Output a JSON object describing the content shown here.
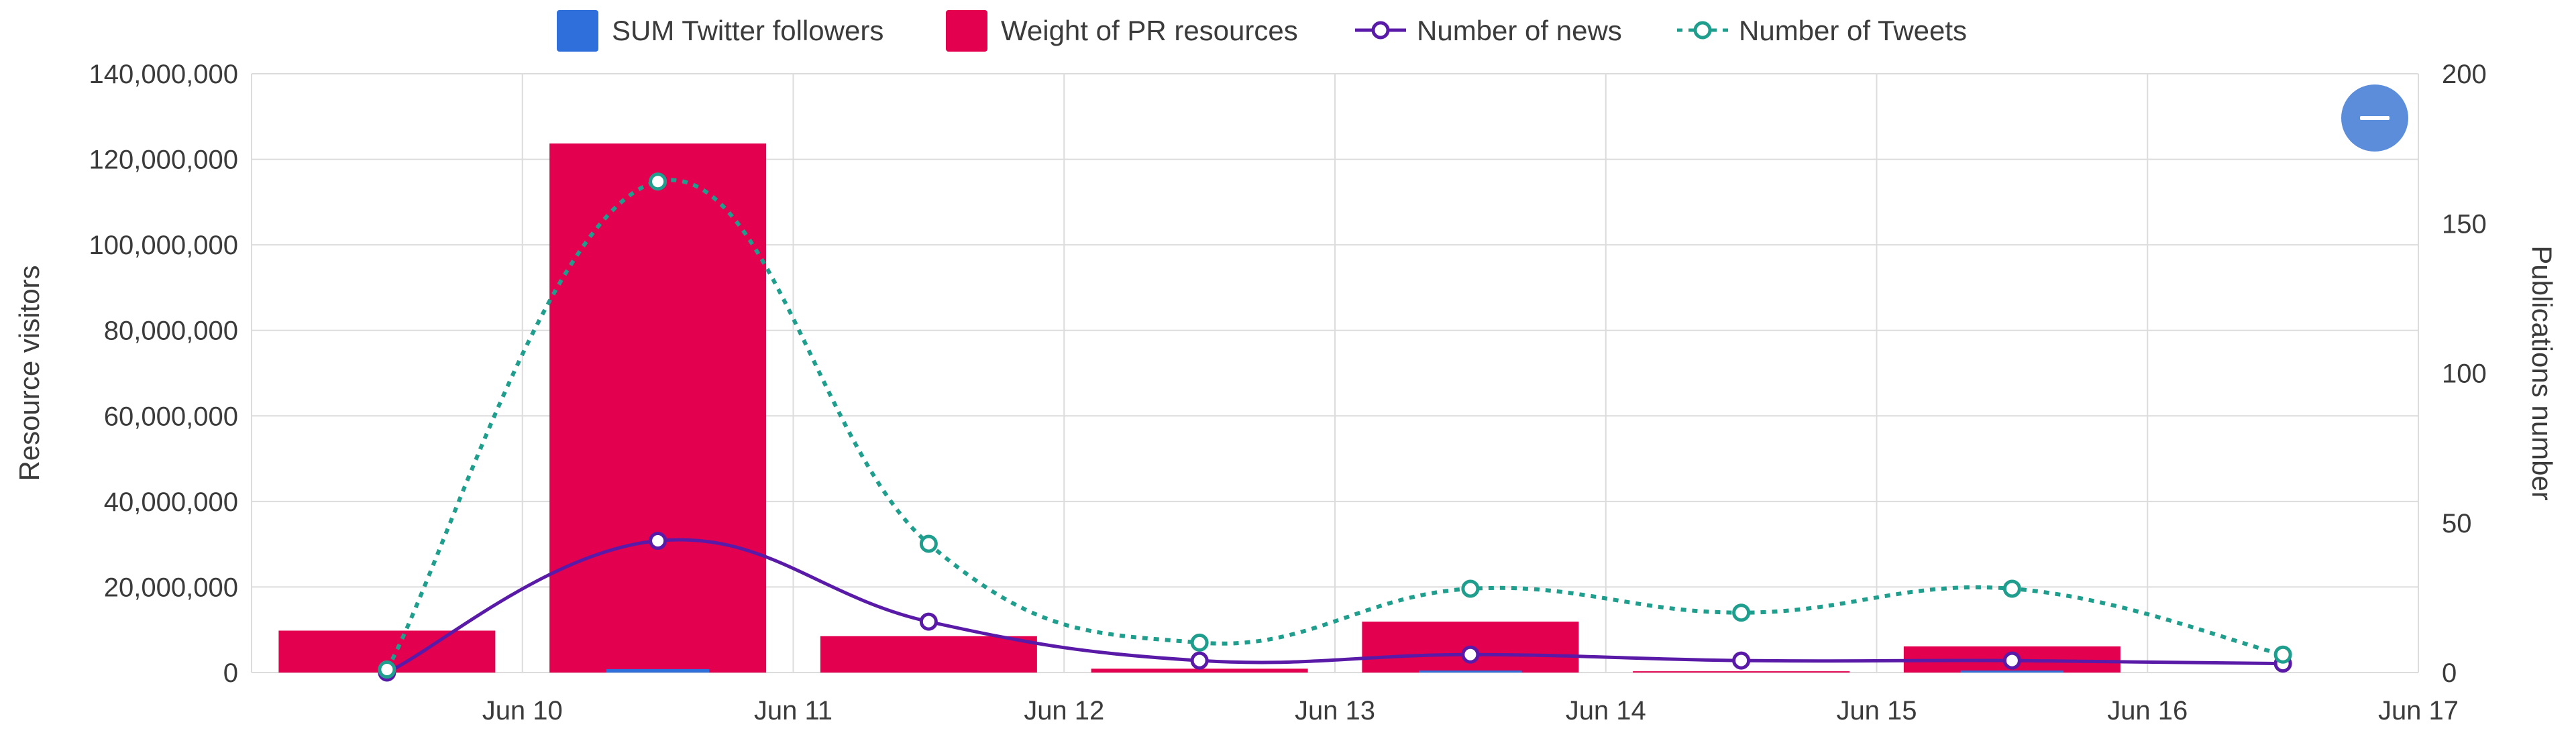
{
  "chart_data": {
    "type": "bar",
    "categories": [
      "Jun 10",
      "Jun 11",
      "Jun 12",
      "Jun 13",
      "Jun 14",
      "Jun 15",
      "Jun 16",
      "Jun 17"
    ],
    "y_left": {
      "label": "Resource visitors",
      "ylim": [
        0,
        140000000
      ],
      "ticks": [
        "0",
        "20,000,000",
        "40,000,000",
        "60,000,000",
        "80,000,000",
        "100,000,000",
        "120,000,000",
        "140,000,000"
      ]
    },
    "y_right": {
      "label": "Publications number",
      "ylim": [
        0,
        200
      ],
      "ticks": [
        "0",
        "50",
        "100",
        "150",
        "200"
      ]
    },
    "series": [
      {
        "name": "SUM Twitter followers",
        "type": "bar",
        "axis": "left",
        "color": "#2f6fdc",
        "values": [
          0,
          800000,
          0,
          0,
          200000,
          0,
          200000,
          0
        ]
      },
      {
        "name": "Weight of PR resources",
        "type": "bar",
        "axis": "left",
        "color": "#e2004f",
        "values": [
          9800000,
          123700000,
          8500000,
          900000,
          11900000,
          300000,
          6100000,
          0
        ]
      },
      {
        "name": "Number of news",
        "type": "line",
        "axis": "right",
        "color": "#5a1aa8",
        "style": "solid",
        "values": [
          0,
          44,
          17,
          4,
          6,
          4,
          4,
          3
        ]
      },
      {
        "name": "Number of Tweets",
        "type": "line",
        "axis": "right",
        "color": "#1f9e8e",
        "style": "dotted",
        "values": [
          1,
          164,
          43,
          10,
          28,
          20,
          28,
          6
        ]
      }
    ],
    "grid": true,
    "legend_position": "top-center",
    "zoom_out_icon": "minus-icon"
  }
}
